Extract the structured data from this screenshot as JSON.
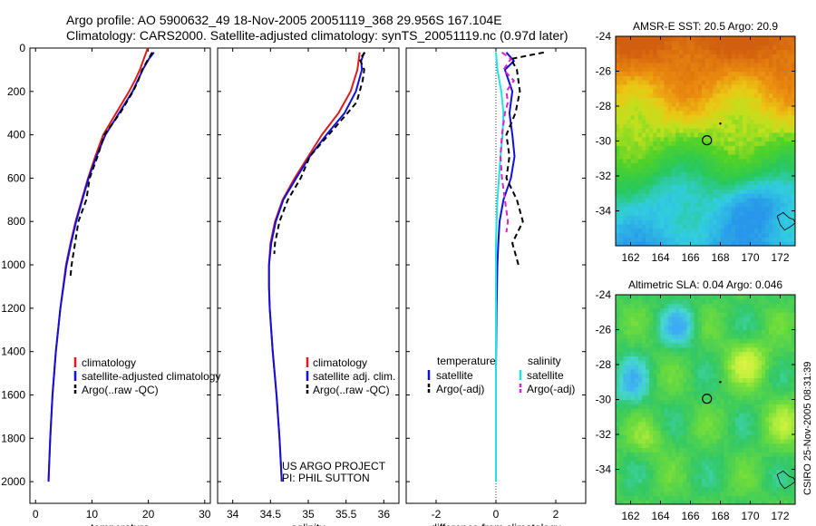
{
  "header": {
    "line1": "Argo profile: AO 5900632_49 18-Nov-2005 20051119_368 29.956S 167.104E",
    "line2": "Climatology: CARS2000. Satellite-adjusted climatology: synTS_20051119.nc (0.97d later)"
  },
  "side_label": "CSIRO 25-Nov-2005 08:31:39",
  "colors": {
    "climatology": "#dd1c1c",
    "satellite": "#1010dd",
    "argo": "#000000",
    "salinity_satellite": "#22e3e3",
    "salinity_argo": "#e020c8"
  },
  "depth_axis": {
    "ylim": [
      0,
      2100
    ],
    "ticks": [
      0,
      200,
      400,
      600,
      800,
      1000,
      1200,
      1400,
      1600,
      1800,
      2000
    ],
    "tick_labels": [
      "0",
      "200",
      "400",
      "600",
      "800",
      "1000",
      "1200",
      "1400",
      "1600",
      "1800",
      "2000"
    ]
  },
  "chart_data": [
    {
      "type": "line",
      "id": "temperature",
      "xlabel": "temperature",
      "xlim": [
        -1,
        31
      ],
      "xticks": [
        0,
        10,
        20,
        30
      ],
      "xtick_labels": [
        "0",
        "10",
        "20",
        "30"
      ],
      "legend": [
        "climatology",
        "satellite-adjusted climatology",
        "Argo(..raw -QC)"
      ],
      "series": [
        {
          "name": "climatology",
          "depth": [
            0,
            50,
            100,
            150,
            200,
            300,
            400,
            500,
            600,
            700,
            800,
            900,
            1000,
            1200,
            1400,
            1600,
            1800,
            2000
          ],
          "values": [
            19.9,
            19.2,
            18.5,
            17.6,
            16.6,
            14.3,
            12.0,
            10.6,
            9.3,
            8.2,
            7.1,
            6.2,
            5.4,
            4.4,
            3.6,
            3.0,
            2.6,
            2.3
          ]
        },
        {
          "name": "satellite-adjusted climatology",
          "depth": [
            20,
            50,
            100,
            150,
            200,
            300,
            400,
            500,
            600,
            700,
            800,
            900,
            1000,
            1200,
            1400,
            1600,
            1800,
            2000
          ],
          "values": [
            21.0,
            20.1,
            19.0,
            18.1,
            17.2,
            14.8,
            12.4,
            10.8,
            9.4,
            8.3,
            7.2,
            6.3,
            5.5,
            4.4,
            3.6,
            3.0,
            2.6,
            2.3
          ]
        },
        {
          "name": "Argo(..raw -QC)",
          "depth": [
            20,
            60,
            100,
            150,
            200,
            300,
            400,
            500,
            600,
            700,
            800,
            900,
            1000,
            1050
          ],
          "values": [
            20.7,
            19.8,
            18.9,
            18.2,
            17.3,
            15.0,
            12.2,
            11.0,
            9.6,
            9.0,
            7.6,
            7.0,
            6.4,
            6.2
          ]
        }
      ]
    },
    {
      "type": "line",
      "id": "salinity",
      "xlabel": "salinity",
      "xlim": [
        33.8,
        36.2
      ],
      "xticks": [
        34,
        34.5,
        35,
        35.5,
        36
      ],
      "xtick_labels": [
        "34",
        "34.5",
        "35",
        "35.5",
        "36"
      ],
      "legend": [
        "climatology",
        "satellite adj. clim.",
        "Argo(..raw -QC)"
      ],
      "annotation": [
        "US ARGO PROJECT",
        "PI: PHIL SUTTON"
      ],
      "series": [
        {
          "name": "climatology",
          "depth": [
            20,
            100,
            200,
            300,
            400,
            500,
            600,
            700,
            800,
            900,
            1000,
            1100,
            1200,
            1400,
            1600,
            1800,
            2000
          ],
          "values": [
            35.68,
            35.65,
            35.56,
            35.4,
            35.18,
            35.0,
            34.82,
            34.66,
            34.56,
            34.5,
            34.48,
            34.48,
            34.49,
            34.53,
            34.58,
            34.62,
            34.65
          ]
        },
        {
          "name": "satellite adj. clim.",
          "depth": [
            20,
            60,
            100,
            200,
            300,
            400,
            500,
            600,
            700,
            800,
            900,
            1000,
            1100,
            1200,
            1400,
            1600,
            1800,
            2000
          ],
          "values": [
            35.74,
            35.7,
            35.71,
            35.63,
            35.48,
            35.24,
            35.02,
            34.84,
            34.67,
            34.57,
            34.51,
            34.48,
            34.48,
            34.49,
            34.53,
            34.58,
            34.62,
            34.65
          ]
        },
        {
          "name": "Argo(..raw -QC)",
          "depth": [
            20,
            50,
            100,
            150,
            200,
            250,
            300,
            400,
            500,
            600,
            700,
            800,
            900,
            950
          ],
          "values": [
            35.75,
            35.68,
            35.74,
            35.72,
            35.68,
            35.64,
            35.52,
            35.27,
            35.02,
            34.9,
            34.73,
            34.62,
            34.56,
            34.55
          ]
        }
      ]
    },
    {
      "type": "line",
      "id": "difference",
      "xlabel": "difference from climatology",
      "xlim": [
        -3,
        3
      ],
      "xticks": [
        -2,
        0,
        2
      ],
      "xtick_labels": [
        "-2",
        "0",
        "2"
      ],
      "legend_temperature": {
        "title": "temperature",
        "items": [
          "satellite",
          "Argo(-adj)"
        ]
      },
      "legend_salinity": {
        "title": "salinity",
        "items": [
          "satellite",
          "Argo(-adj)"
        ]
      },
      "series": [
        {
          "name": "temperature satellite",
          "depth": [
            20,
            60,
            100,
            200,
            300,
            400,
            500,
            600,
            700,
            800,
            900,
            1000,
            1200,
            1500
          ],
          "values": [
            0.35,
            0.6,
            0.3,
            0.55,
            0.45,
            0.55,
            0.62,
            0.5,
            0.25,
            0.12,
            0.08,
            0.05,
            0.02,
            0.0
          ]
        },
        {
          "name": "temperature Argo(-adj)",
          "depth": [
            20,
            50,
            100,
            200,
            300,
            400,
            500,
            600,
            700,
            800,
            900,
            1000
          ],
          "values": [
            1.6,
            0.5,
            0.7,
            0.8,
            0.65,
            0.35,
            0.45,
            0.35,
            0.7,
            0.9,
            0.55,
            0.75
          ]
        },
        {
          "name": "salinity satellite",
          "depth": [
            20,
            100,
            200,
            300,
            400,
            500,
            600,
            700,
            800,
            900,
            1000,
            1500,
            2000
          ],
          "values": [
            0.0,
            0.05,
            0.18,
            0.25,
            0.22,
            0.15,
            0.1,
            0.05,
            0.02,
            0.0,
            0.0,
            0.0,
            0.0
          ]
        },
        {
          "name": "salinity Argo(-adj)",
          "depth": [
            20,
            50,
            100,
            150,
            200,
            250,
            300,
            400,
            500,
            600,
            700,
            800,
            850
          ],
          "values": [
            0.2,
            0.5,
            0.25,
            0.6,
            0.35,
            0.4,
            0.3,
            0.2,
            0.15,
            0.2,
            0.3,
            0.4,
            0.35
          ]
        }
      ]
    },
    {
      "type": "heatmap",
      "id": "sst_map",
      "title": "AMSR-E SST: 20.5 Argo: 20.9",
      "xlim": [
        161,
        173
      ],
      "ylim": [
        -36,
        -24
      ],
      "xticks": [
        162,
        164,
        166,
        168,
        170,
        172
      ],
      "xtick_labels": [
        "162",
        "164",
        "166",
        "168",
        "170",
        "172"
      ],
      "yticks": [
        -24,
        -26,
        -28,
        -30,
        -32,
        -34
      ],
      "ytick_labels": [
        "-24",
        "-26",
        "-28",
        "-30",
        "-32",
        "-34"
      ],
      "float_position": [
        167.104,
        -29.956
      ]
    },
    {
      "type": "heatmap",
      "id": "sla_map",
      "title": "Altimetric SLA: 0.04 Argo: 0.046",
      "xlim": [
        161,
        173
      ],
      "ylim": [
        -36,
        -24
      ],
      "xticks": [
        162,
        164,
        166,
        168,
        170,
        172
      ],
      "xtick_labels": [
        "162",
        "164",
        "166",
        "168",
        "170",
        "172"
      ],
      "yticks": [
        -24,
        -26,
        -28,
        -30,
        -32,
        -34
      ],
      "ytick_labels": [
        "-24",
        "-26",
        "-28",
        "-30",
        "-32",
        "-34"
      ],
      "float_position": [
        167.104,
        -29.956
      ]
    }
  ]
}
